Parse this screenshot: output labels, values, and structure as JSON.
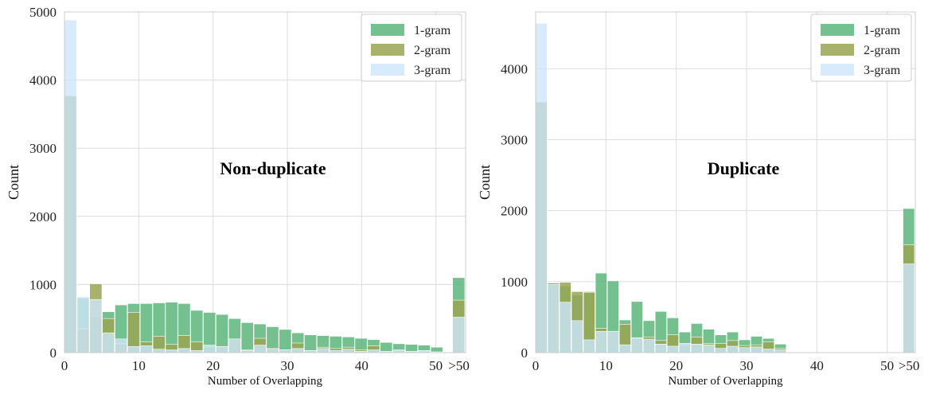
{
  "chart_data": [
    {
      "type": "bar",
      "annotation": "Non-duplicate",
      "xlabel": "Number of Overlapping",
      "ylabel": "Count",
      "xlim": [
        0,
        54
      ],
      "ylim": [
        0,
        5000
      ],
      "x_ticks": [
        "0",
        "10",
        "20",
        "30",
        "40",
        "50",
        ">50"
      ],
      "y_ticks": [
        "0",
        "1000",
        "2000",
        "3000",
        "4000",
        "5000"
      ],
      "grid": true,
      "legend_position": "top-right",
      "bin_width": 1.7,
      "overflow_x": 53.1,
      "series": [
        {
          "name": "1-gram",
          "color": "#5cb57a",
          "values": [
            3770,
            800,
            520,
            600,
            700,
            720,
            720,
            730,
            740,
            720,
            620,
            590,
            560,
            500,
            440,
            420,
            380,
            340,
            290,
            260,
            250,
            240,
            230,
            210,
            190,
            150,
            130,
            120,
            110,
            80
          ],
          "overflow": 1100
        },
        {
          "name": "2-gram",
          "color": "#99a552",
          "values": [
            3770,
            350,
            1010,
            500,
            130,
            590,
            160,
            240,
            120,
            250,
            160,
            90,
            90,
            200,
            40,
            210,
            60,
            40,
            140,
            30,
            80,
            60,
            80,
            40,
            100,
            20,
            30,
            20,
            20,
            10
          ],
          "overflow": 770
        },
        {
          "name": "3-gram",
          "color": "#cde6fb",
          "values": [
            4880,
            820,
            780,
            290,
            200,
            90,
            100,
            50,
            40,
            60,
            30,
            110,
            90,
            200,
            30,
            110,
            50,
            40,
            60,
            30,
            60,
            30,
            50,
            20,
            40,
            20,
            40,
            20,
            30,
            10
          ],
          "overflow": 520
        }
      ]
    },
    {
      "type": "bar",
      "annotation": "Duplicate",
      "xlabel": "Number of Overlapping",
      "ylabel": "Count",
      "xlim": [
        0,
        54
      ],
      "ylim": [
        0,
        4800
      ],
      "x_ticks": [
        "0",
        "10",
        "20",
        "30",
        "40",
        "50",
        ">50"
      ],
      "y_ticks": [
        "0",
        "1000",
        "2000",
        "3000",
        "4000"
      ],
      "grid": true,
      "legend_position": "top-right",
      "bin_width": 1.7,
      "overflow_x": 53.1,
      "series": [
        {
          "name": "1-gram",
          "color": "#5cb57a",
          "values": [
            3530,
            980,
            940,
            810,
            860,
            1120,
            1010,
            460,
            720,
            450,
            580,
            490,
            290,
            410,
            330,
            250,
            290,
            180,
            230,
            200,
            120
          ],
          "overflow": 2030
        },
        {
          "name": "2-gram",
          "color": "#99a552",
          "values": [
            3530,
            980,
            990,
            860,
            850,
            340,
            300,
            400,
            200,
            220,
            170,
            250,
            110,
            220,
            130,
            130,
            170,
            100,
            110,
            150,
            60
          ],
          "overflow": 1520
        },
        {
          "name": "3-gram",
          "color": "#cde6fb",
          "values": [
            4640,
            960,
            710,
            450,
            180,
            300,
            300,
            110,
            210,
            190,
            120,
            90,
            130,
            120,
            110,
            60,
            90,
            70,
            80,
            50,
            40
          ],
          "overflow": 1250
        }
      ]
    }
  ]
}
